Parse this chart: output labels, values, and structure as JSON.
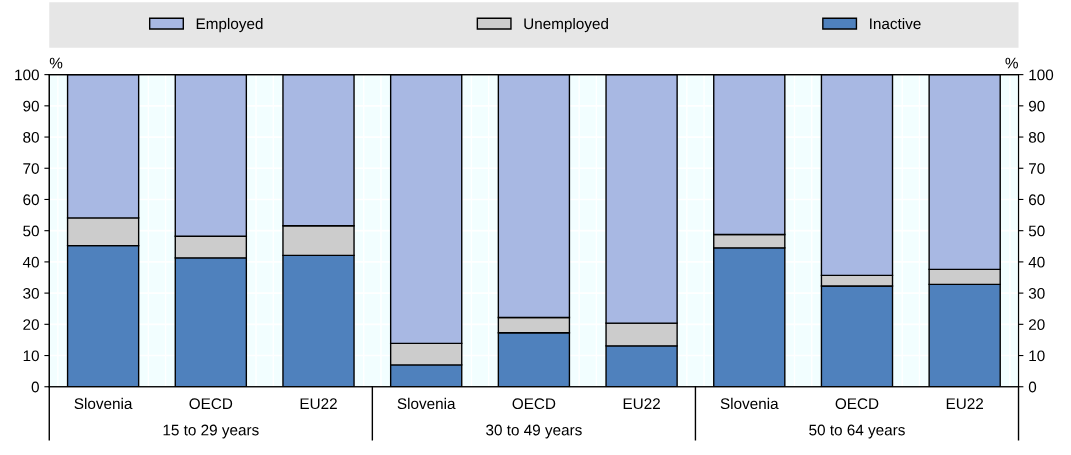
{
  "chart_data": {
    "type": "bar",
    "stacked": true,
    "categories": [
      "Slovenia",
      "OECD",
      "EU22",
      "Slovenia",
      "OECD",
      "EU22",
      "Slovenia",
      "OECD",
      "EU22"
    ],
    "series": [
      {
        "name": "Inactive",
        "color": "#4f81bd",
        "values": [
          45.2,
          41.3,
          42.1,
          7.0,
          17.3,
          13.1,
          44.5,
          32.3,
          32.8
        ]
      },
      {
        "name": "Unemployed",
        "color": "#cccccc",
        "values": [
          8.9,
          6.9,
          9.5,
          6.9,
          4.9,
          7.3,
          4.3,
          3.4,
          4.8
        ]
      },
      {
        "name": "Employed",
        "color": "#a8b8e3",
        "values": [
          45.9,
          51.8,
          48.4,
          86.1,
          77.8,
          79.6,
          51.2,
          64.3,
          62.4
        ]
      }
    ],
    "ylabel": "%",
    "y2label": "%",
    "ylim": [
      0,
      100
    ],
    "yticks": [
      0,
      10,
      20,
      30,
      40,
      50,
      60,
      70,
      80,
      90,
      100
    ],
    "y2lim": [
      0,
      100
    ],
    "y2ticks": [
      0,
      10,
      20,
      30,
      40,
      50,
      60,
      70,
      80,
      90,
      100
    ],
    "annotations": [
      "15 to 29 years",
      "30 to 49 years",
      "50 to 64 years"
    ],
    "grid": true,
    "legend": "top"
  }
}
